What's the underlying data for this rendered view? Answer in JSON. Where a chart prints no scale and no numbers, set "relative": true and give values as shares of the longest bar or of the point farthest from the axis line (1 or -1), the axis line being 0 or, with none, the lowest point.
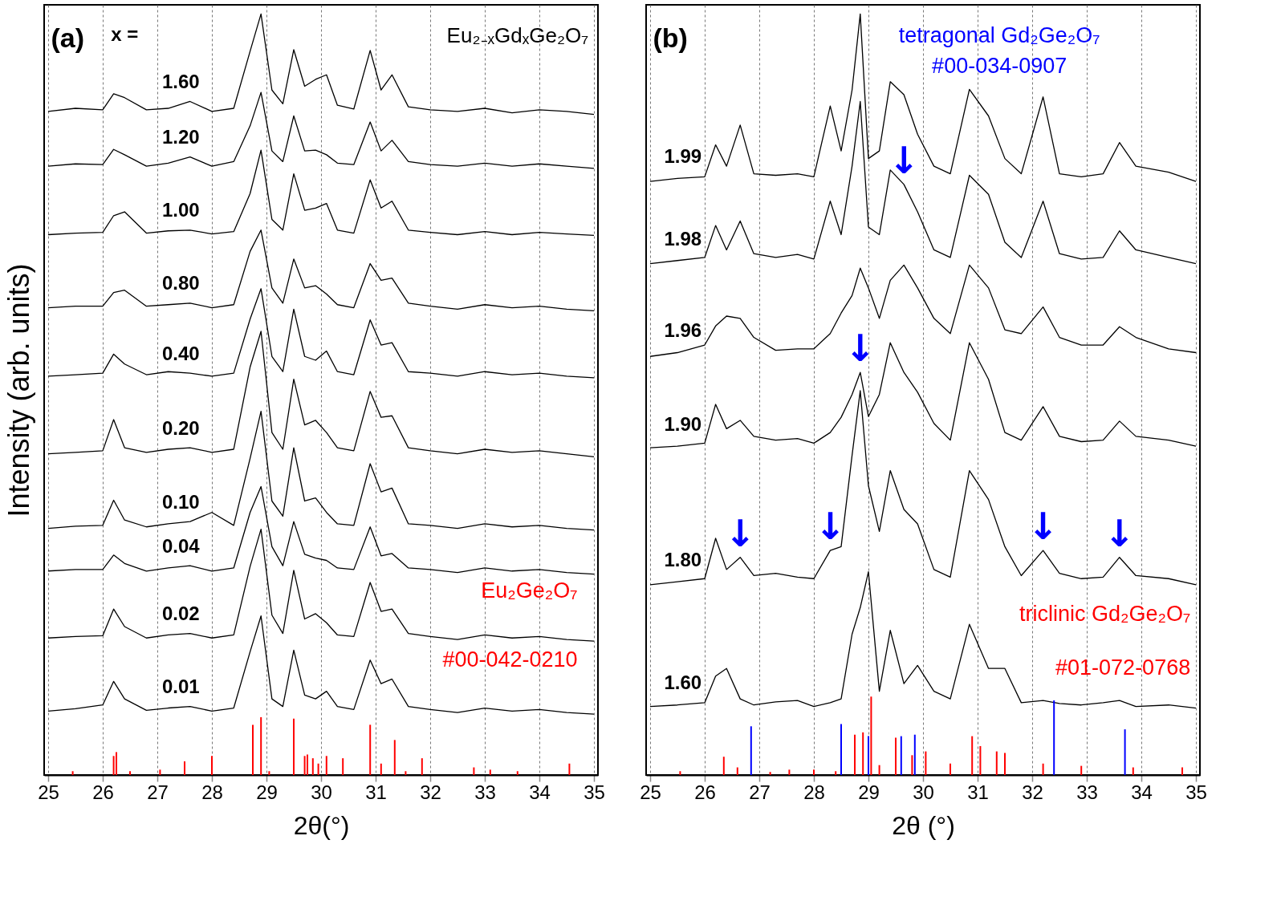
{
  "chart_data": [
    {
      "type": "line",
      "relative": true,
      "xlabel": "2θ(°)",
      "ylabel": "Intensity (arb. units)",
      "xlim": [
        25,
        35
      ],
      "xticks": [
        25,
        26,
        27,
        28,
        29,
        30,
        31,
        32,
        33,
        34,
        35
      ],
      "grid": "x",
      "tick_labels": "x",
      "annotations": [
        "(a)",
        "x =",
        "Eu₂₋ₓGdₓGe₂O₇"
      ],
      "x": [
        25,
        25.5,
        26,
        26.2,
        26.4,
        26.8,
        27.2,
        27.6,
        28,
        28.4,
        28.7,
        28.9,
        29.1,
        29.3,
        29.5,
        29.7,
        29.9,
        30.1,
        30.3,
        30.6,
        30.9,
        31.1,
        31.3,
        31.6,
        32,
        32.5,
        33,
        33.5,
        34,
        34.5,
        35
      ],
      "series": [
        {
          "name": "1.60",
          "color": "#000000",
          "values": [
            0.872,
            0.876,
            0.874,
            0.895,
            0.89,
            0.874,
            0.876,
            0.885,
            0.872,
            0.876,
            0.951,
            1.0,
            0.9,
            0.882,
            0.953,
            0.905,
            0.914,
            0.92,
            0.88,
            0.875,
            0.952,
            0.9,
            0.92,
            0.878,
            0.874,
            0.872,
            0.876,
            0.87,
            0.874,
            0.872,
            0.868
          ]
        },
        {
          "name": "1.20",
          "color": "#000000",
          "values": [
            0.8,
            0.803,
            0.802,
            0.822,
            0.815,
            0.8,
            0.804,
            0.812,
            0.8,
            0.806,
            0.853,
            0.897,
            0.82,
            0.806,
            0.866,
            0.82,
            0.821,
            0.815,
            0.804,
            0.802,
            0.858,
            0.82,
            0.834,
            0.806,
            0.802,
            0.8,
            0.804,
            0.8,
            0.803,
            0.8,
            0.797
          ]
        },
        {
          "name": "1.00",
          "color": "#000000",
          "values": [
            0.71,
            0.712,
            0.713,
            0.735,
            0.74,
            0.712,
            0.715,
            0.716,
            0.711,
            0.714,
            0.764,
            0.821,
            0.73,
            0.716,
            0.79,
            0.742,
            0.745,
            0.751,
            0.716,
            0.712,
            0.782,
            0.745,
            0.754,
            0.716,
            0.713,
            0.71,
            0.714,
            0.71,
            0.713,
            0.711,
            0.709
          ]
        },
        {
          "name": "0.80",
          "color": "#000000",
          "values": [
            0.614,
            0.616,
            0.616,
            0.634,
            0.637,
            0.616,
            0.618,
            0.62,
            0.614,
            0.618,
            0.688,
            0.716,
            0.64,
            0.62,
            0.678,
            0.64,
            0.643,
            0.632,
            0.618,
            0.614,
            0.672,
            0.65,
            0.653,
            0.62,
            0.616,
            0.612,
            0.618,
            0.614,
            0.616,
            0.612,
            0.61
          ]
        },
        {
          "name": "0.40",
          "color": "#000000",
          "values": [
            0.524,
            0.526,
            0.528,
            0.553,
            0.54,
            0.526,
            0.53,
            0.528,
            0.524,
            0.528,
            0.599,
            0.639,
            0.55,
            0.53,
            0.612,
            0.55,
            0.545,
            0.557,
            0.53,
            0.526,
            0.598,
            0.565,
            0.568,
            0.53,
            0.528,
            0.524,
            0.53,
            0.526,
            0.528,
            0.524,
            0.522
          ]
        },
        {
          "name": "0.20",
          "color": "#000000",
          "values": [
            0.422,
            0.424,
            0.426,
            0.467,
            0.43,
            0.424,
            0.428,
            0.43,
            0.424,
            0.428,
            0.536,
            0.583,
            0.45,
            0.428,
            0.52,
            0.46,
            0.466,
            0.45,
            0.43,
            0.426,
            0.504,
            0.47,
            0.472,
            0.43,
            0.426,
            0.422,
            0.428,
            0.424,
            0.426,
            0.422,
            0.418
          ]
        },
        {
          "name": "0.10",
          "color": "#000000",
          "values": [
            0.324,
            0.327,
            0.328,
            0.361,
            0.335,
            0.326,
            0.33,
            0.333,
            0.345,
            0.328,
            0.416,
            0.478,
            0.36,
            0.34,
            0.43,
            0.36,
            0.364,
            0.345,
            0.33,
            0.328,
            0.409,
            0.372,
            0.377,
            0.33,
            0.328,
            0.324,
            0.33,
            0.326,
            0.328,
            0.324,
            0.322
          ]
        },
        {
          "name": "0.04",
          "color": "#000000",
          "values": [
            0.268,
            0.27,
            0.27,
            0.289,
            0.278,
            0.268,
            0.272,
            0.275,
            0.268,
            0.272,
            0.345,
            0.379,
            0.3,
            0.275,
            0.333,
            0.29,
            0.285,
            0.282,
            0.272,
            0.27,
            0.326,
            0.288,
            0.291,
            0.272,
            0.27,
            0.266,
            0.272,
            0.268,
            0.27,
            0.266,
            0.264
          ]
        },
        {
          "name": "0.02",
          "color": "#000000",
          "values": [
            0.18,
            0.182,
            0.183,
            0.218,
            0.195,
            0.18,
            0.184,
            0.186,
            0.18,
            0.184,
            0.274,
            0.323,
            0.21,
            0.186,
            0.269,
            0.205,
            0.212,
            0.2,
            0.184,
            0.182,
            0.253,
            0.215,
            0.218,
            0.186,
            0.182,
            0.178,
            0.184,
            0.18,
            0.182,
            0.178,
            0.176
          ]
        },
        {
          "name": "0.01",
          "color": "#000000",
          "values": [
            0.084,
            0.087,
            0.092,
            0.123,
            0.1,
            0.085,
            0.088,
            0.09,
            0.084,
            0.088,
            0.162,
            0.209,
            0.1,
            0.09,
            0.164,
            0.105,
            0.1,
            0.11,
            0.09,
            0.086,
            0.151,
            0.12,
            0.126,
            0.09,
            0.086,
            0.082,
            0.088,
            0.084,
            0.086,
            0.082,
            0.08
          ]
        },
        {
          "name": "Eu₂Ge₂O₇\n#00-042-0210",
          "type": "bar",
          "color": "#ff0000",
          "x": [
            25.45,
            26.2,
            26.25,
            26.5,
            27.05,
            27.5,
            28.0,
            28.75,
            28.9,
            29.05,
            29.5,
            29.7,
            29.75,
            29.85,
            29.95,
            30.1,
            30.4,
            30.9,
            31.1,
            31.35,
            31.55,
            31.85,
            32.8,
            33.1,
            33.6,
            34.55
          ],
          "values": [
            0.005,
            0.025,
            0.03,
            0.005,
            0.007,
            0.018,
            0.025,
            0.066,
            0.076,
            0.005,
            0.074,
            0.025,
            0.027,
            0.022,
            0.015,
            0.025,
            0.022,
            0.066,
            0.015,
            0.046,
            0.005,
            0.022,
            0.01,
            0.007,
            0.005,
            0.015
          ]
        }
      ]
    },
    {
      "type": "line",
      "relative": true,
      "xlabel": "2θ (°)",
      "xlim": [
        25,
        35
      ],
      "xticks": [
        25,
        26,
        27,
        28,
        29,
        30,
        31,
        32,
        33,
        34,
        35
      ],
      "grid": "x",
      "tick_labels": "x",
      "annotations": [
        "(b)",
        {
          "text": "↓",
          "x": 29.65,
          "y": 0.776
        },
        {
          "text": "↓",
          "x": 28.85,
          "y": 0.529
        },
        {
          "text": "↓",
          "x": 26.65,
          "y": 0.286
        },
        {
          "text": "↓",
          "x": 28.3,
          "y": 0.295
        },
        {
          "text": "↓",
          "x": 32.2,
          "y": 0.295
        },
        {
          "text": "↓",
          "x": 33.6,
          "y": 0.286
        }
      ],
      "x": [
        25,
        25.5,
        26,
        26.2,
        26.4,
        26.65,
        26.9,
        27.3,
        27.7,
        28.0,
        28.3,
        28.5,
        28.7,
        28.85,
        29.0,
        29.2,
        29.4,
        29.65,
        29.9,
        30.2,
        30.5,
        30.85,
        31.2,
        31.5,
        31.8,
        32.2,
        32.5,
        32.9,
        33.3,
        33.6,
        33.9,
        34.5,
        35
      ],
      "series": [
        {
          "name": "1.99",
          "color": "#000000",
          "values": [
            0.78,
            0.784,
            0.786,
            0.828,
            0.8,
            0.854,
            0.79,
            0.788,
            0.79,
            0.786,
            0.879,
            0.82,
            0.9,
            1.0,
            0.81,
            0.82,
            0.911,
            0.894,
            0.842,
            0.8,
            0.79,
            0.901,
            0.866,
            0.81,
            0.79,
            0.891,
            0.79,
            0.786,
            0.79,
            0.831,
            0.8,
            0.792,
            0.78
          ]
        },
        {
          "name": "1.98",
          "color": "#000000",
          "values": [
            0.672,
            0.676,
            0.68,
            0.722,
            0.69,
            0.728,
            0.685,
            0.68,
            0.684,
            0.678,
            0.754,
            0.71,
            0.8,
            0.885,
            0.72,
            0.71,
            0.795,
            0.776,
            0.74,
            0.69,
            0.68,
            0.788,
            0.763,
            0.7,
            0.68,
            0.754,
            0.685,
            0.678,
            0.68,
            0.715,
            0.69,
            0.68,
            0.672
          ]
        },
        {
          "name": "1.96",
          "color": "#000000",
          "values": [
            0.55,
            0.555,
            0.565,
            0.59,
            0.603,
            0.6,
            0.575,
            0.558,
            0.56,
            0.56,
            0.58,
            0.607,
            0.63,
            0.666,
            0.64,
            0.6,
            0.65,
            0.67,
            0.64,
            0.6,
            0.58,
            0.67,
            0.64,
            0.585,
            0.58,
            0.615,
            0.575,
            0.565,
            0.565,
            0.589,
            0.575,
            0.56,
            0.555
          ]
        },
        {
          "name": "1.90",
          "color": "#000000",
          "values": [
            0.43,
            0.432,
            0.436,
            0.487,
            0.455,
            0.466,
            0.445,
            0.44,
            0.442,
            0.436,
            0.45,
            0.47,
            0.5,
            0.529,
            0.471,
            0.5,
            0.568,
            0.529,
            0.503,
            0.462,
            0.44,
            0.568,
            0.52,
            0.45,
            0.44,
            0.484,
            0.445,
            0.438,
            0.44,
            0.465,
            0.445,
            0.44,
            0.432
          ]
        },
        {
          "name": "1.80",
          "color": "#000000",
          "values": [
            0.25,
            0.254,
            0.258,
            0.311,
            0.27,
            0.286,
            0.262,
            0.265,
            0.26,
            0.258,
            0.295,
            0.3,
            0.42,
            0.505,
            0.38,
            0.32,
            0.4,
            0.349,
            0.33,
            0.27,
            0.26,
            0.4,
            0.362,
            0.3,
            0.262,
            0.295,
            0.265,
            0.258,
            0.26,
            0.286,
            0.262,
            0.258,
            0.25
          ]
        },
        {
          "name": "1.60",
          "color": "#000000",
          "values": [
            0.09,
            0.092,
            0.095,
            0.13,
            0.14,
            0.1,
            0.092,
            0.096,
            0.098,
            0.09,
            0.095,
            0.1,
            0.185,
            0.22,
            0.267,
            0.11,
            0.19,
            0.12,
            0.144,
            0.11,
            0.1,
            0.198,
            0.14,
            0.14,
            0.095,
            0.098,
            0.094,
            0.092,
            0.095,
            0.098,
            0.09,
            0.092,
            0.088
          ]
        },
        {
          "name": "triclinic Gd₂Ge₂O₇\n#01-072-0768",
          "type": "bar",
          "color": "#ff0000",
          "x": [
            25.55,
            26.35,
            26.6,
            27.2,
            27.55,
            28.0,
            28.4,
            28.75,
            28.9,
            29.05,
            29.2,
            29.5,
            29.8,
            30.05,
            30.5,
            30.9,
            31.05,
            31.35,
            31.5,
            32.2,
            32.9,
            33.85,
            34.75
          ],
          "values": [
            0.005,
            0.024,
            0.01,
            0.004,
            0.007,
            0.007,
            0.005,
            0.053,
            0.056,
            0.103,
            0.013,
            0.049,
            0.026,
            0.031,
            0.015,
            0.051,
            0.038,
            0.031,
            0.029,
            0.015,
            0.012,
            0.01,
            0.01
          ]
        },
        {
          "name": "tetragonal Gd₂Ge₂O₇\n#00-034-0907",
          "type": "bar",
          "color": "#0000ff",
          "x": [
            26.85,
            28.5,
            29.0,
            29.6,
            29.85,
            32.4,
            33.7
          ],
          "values": [
            0.064,
            0.067,
            0.051,
            0.051,
            0.053,
            0.098,
            0.06
          ]
        }
      ]
    }
  ]
}
